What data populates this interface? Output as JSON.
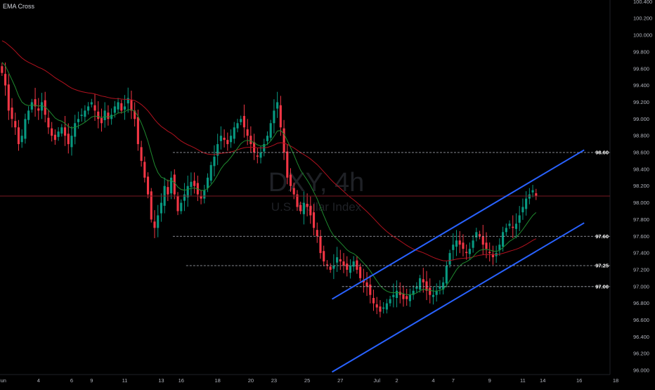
{
  "indicator": {
    "name": "EMA Cross"
  },
  "watermark": {
    "symbol": "DXY, 4h",
    "description": "U.S. Dollar Index"
  },
  "colors": {
    "up": "#089981",
    "down": "#f23645",
    "ema_fast": "#1f8a2f",
    "ema_slow": "#b2121f",
    "channel": "#2962ff",
    "level_line": "#b2b5be",
    "price_line": "#7a1a22"
  },
  "chart_data": {
    "type": "candlestick",
    "title": "",
    "xlabel": "",
    "ylabel": "",
    "ylim": [
      95.95,
      100.42
    ],
    "y_ticks": [
      "96.000",
      "96.200",
      "96.400",
      "96.600",
      "96.800",
      "97.000",
      "97.200",
      "97.400",
      "97.600",
      "97.800",
      "98.000",
      "98.200",
      "98.400",
      "98.600",
      "98.800",
      "99.000",
      "99.200",
      "99.400",
      "99.600",
      "99.800",
      "100.000",
      "100.200",
      "100.400"
    ],
    "x_ticks": [
      {
        "label": "Jun",
        "bar": 0
      },
      {
        "label": "4",
        "bar": 11
      },
      {
        "label": "6",
        "bar": 21
      },
      {
        "label": "9",
        "bar": 27
      },
      {
        "label": "11",
        "bar": 37
      },
      {
        "label": "13",
        "bar": 48
      },
      {
        "label": "16",
        "bar": 54
      },
      {
        "label": "18",
        "bar": 65
      },
      {
        "label": "20",
        "bar": 75
      },
      {
        "label": "23",
        "bar": 82
      },
      {
        "label": "25",
        "bar": 92
      },
      {
        "label": "27",
        "bar": 102
      },
      {
        "label": "Jul",
        "bar": 113
      },
      {
        "label": "2",
        "bar": 119
      },
      {
        "label": "4",
        "bar": 130
      },
      {
        "label": "7",
        "bar": 136
      },
      {
        "label": "9",
        "bar": 147
      },
      {
        "label": "11",
        "bar": 157
      },
      {
        "label": "14",
        "bar": 163
      },
      {
        "label": "16",
        "bar": 174
      },
      {
        "label": "18",
        "bar": 185
      }
    ],
    "levels": [
      98.6,
      97.25,
      97.6,
      97.0
    ],
    "level_labels": [
      "98.60",
      "97.25",
      "97.60",
      "97.00"
    ],
    "channel": {
      "upper": {
        "from": [
          100,
          96.85
        ],
        "to": [
          176,
          98.63
        ]
      },
      "lower": {
        "from": [
          100,
          95.98
        ],
        "to": [
          176,
          97.76
        ]
      }
    },
    "closes": [
      99.55,
      99.4,
      99.1,
      99.0,
      98.9,
      98.7,
      98.8,
      99.0,
      99.1,
      99.2,
      99.15,
      99.1,
      99.2,
      99.05,
      98.9,
      98.8,
      98.75,
      98.85,
      98.9,
      98.8,
      98.7,
      98.8,
      98.95,
      99.0,
      99.05,
      99.1,
      99.15,
      99.2,
      99.1,
      99.0,
      98.95,
      99.1,
      99.0,
      99.05,
      99.15,
      99.2,
      99.1,
      99.15,
      99.25,
      99.1,
      99.0,
      98.7,
      98.5,
      98.3,
      98.1,
      97.8,
      97.7,
      97.85,
      98.0,
      98.2,
      98.1,
      98.3,
      98.1,
      97.9,
      98.0,
      98.1,
      98.2,
      98.25,
      98.2,
      98.1,
      98.05,
      98.15,
      98.3,
      98.45,
      98.55,
      98.7,
      98.8,
      98.75,
      98.7,
      98.8,
      98.9,
      98.95,
      99.0,
      98.9,
      98.8,
      98.7,
      98.6,
      98.55,
      98.6,
      98.7,
      98.8,
      98.95,
      99.1,
      99.2,
      98.9,
      98.6,
      98.3,
      98.2,
      98.1,
      97.95,
      97.9,
      98.0,
      97.95,
      97.85,
      97.7,
      97.6,
      97.4,
      97.3,
      97.25,
      97.2,
      97.25,
      97.35,
      97.3,
      97.25,
      97.2,
      97.25,
      97.3,
      97.2,
      97.1,
      97.05,
      97.0,
      96.9,
      96.8,
      96.75,
      96.7,
      96.75,
      96.8,
      96.85,
      96.9,
      96.95,
      96.9,
      96.85,
      96.85,
      96.9,
      96.95,
      97.0,
      97.1,
      97.05,
      96.95,
      96.9,
      96.9,
      96.95,
      97.0,
      97.05,
      97.25,
      97.4,
      97.5,
      97.55,
      97.5,
      97.45,
      97.4,
      97.45,
      97.55,
      97.65,
      97.6,
      97.5,
      97.45,
      97.4,
      97.35,
      97.4,
      97.5,
      97.65,
      97.7,
      97.75,
      97.7,
      97.75,
      97.85,
      97.95,
      98.05,
      98.1,
      98.15,
      98.08
    ]
  }
}
